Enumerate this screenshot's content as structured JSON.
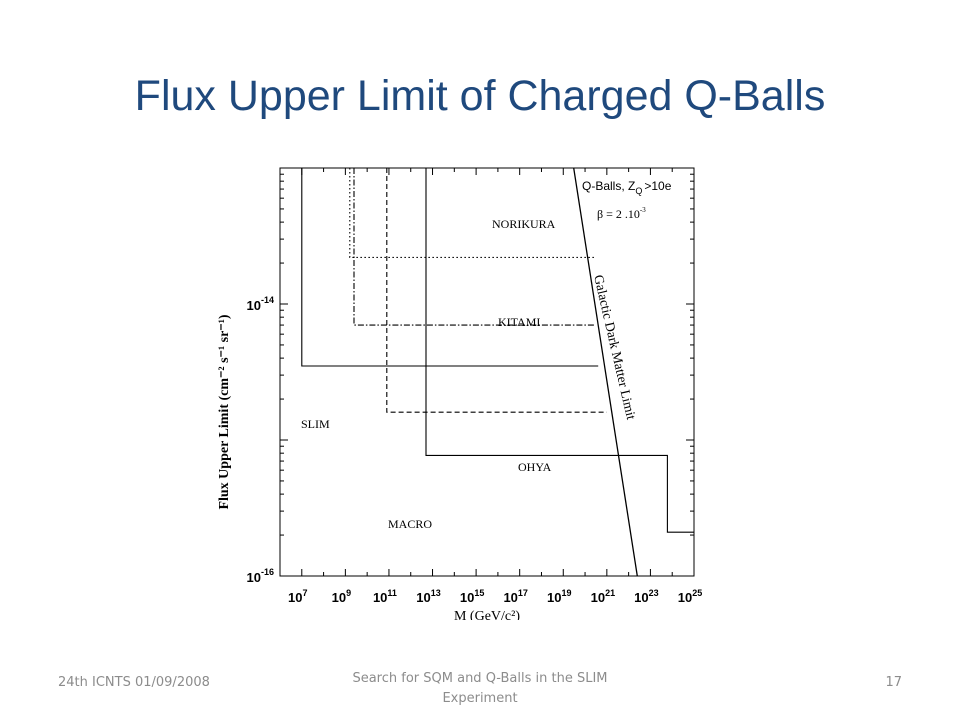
{
  "slide": {
    "title": "Flux Upper Limit of Charged Q-Balls",
    "footer_left": "24th ICNTS 01/09/2008",
    "footer_center": "Search for SQM and Q-Balls in the SLIM Experiment",
    "page_number": "17"
  },
  "chart_data": {
    "type": "line",
    "xscale": "log",
    "yscale": "log",
    "xlim": [
      1000000.0,
      1e+25
    ],
    "ylim": [
      1e-16,
      1e-13
    ],
    "xlabel": "M (GeV/c²)",
    "ylabel": "Flux Upper Limit (cm⁻² s⁻¹ sr⁻¹)",
    "x_ticks": [
      {
        "value": 10000000.0,
        "label_base": "10",
        "label_exp": "7"
      },
      {
        "value": 1000000000.0,
        "label_base": "10",
        "label_exp": "9"
      },
      {
        "value": 100000000000.0,
        "label_base": "10",
        "label_exp": "11"
      },
      {
        "value": 10000000000000.0,
        "label_base": "10",
        "label_exp": "13"
      },
      {
        "value": 1000000000000000.0,
        "label_base": "10",
        "label_exp": "15"
      },
      {
        "value": 1e+17,
        "label_base": "10",
        "label_exp": "17"
      },
      {
        "value": 1e+19,
        "label_base": "10",
        "label_exp": "19"
      },
      {
        "value": 1e+21,
        "label_base": "10",
        "label_exp": "21"
      },
      {
        "value": 1e+23,
        "label_base": "10",
        "label_exp": "23"
      },
      {
        "value": 1e+25,
        "label_base": "10",
        "label_exp": "25"
      }
    ],
    "y_ticks": [
      {
        "value": 1e-14,
        "label_base": "10",
        "label_exp": "-14"
      },
      {
        "value": 1e-16,
        "label_base": "10",
        "label_exp": "-16"
      }
    ],
    "series": [
      {
        "name": "SLIM",
        "style": "solid",
        "x": [
          10000000.0,
          10000000.0,
          4e+20
        ],
        "y": [
          1e-13,
          3.5e-15,
          3.5e-15
        ]
      },
      {
        "name": "NORIKURA",
        "style": "dotted",
        "x": [
          1600000000.0,
          1600000000.0,
          3e+20
        ],
        "y": [
          1e-13,
          2.2e-14,
          2.2e-14
        ]
      },
      {
        "name": "KITAMI",
        "style": "dashdot",
        "x": [
          2500000000.0,
          2500000000.0,
          3e+20
        ],
        "y": [
          1e-13,
          7e-15,
          7e-15
        ]
      },
      {
        "name": "OHYA",
        "style": "dashed",
        "x": [
          80000000000.0,
          80000000000.0,
          1e+21
        ],
        "y": [
          1e-13,
          1.6e-15,
          1.6e-15
        ]
      },
      {
        "name": "MACRO",
        "style": "solid",
        "x": [
          5000000000000.0,
          5000000000000.0,
          6e+23,
          6e+23,
          1e+25
        ],
        "y": [
          1e-13,
          7.7e-16,
          7.7e-16,
          2.1e-16,
          2.1e-16
        ]
      },
      {
        "name": "Galactic Dark Matter Limit",
        "style": "solid",
        "x": [
          3e+19,
          2.5e+22
        ],
        "y": [
          1e-13,
          1e-16
        ]
      }
    ],
    "annotations": {
      "qballs_label": "Q-Balls,",
      "z_label": "Z",
      "z_sub": "Q",
      "z_value": ">10e",
      "beta_label": "β = 2 .10",
      "beta_exp": "-3",
      "gdm_label": "Galactic Dark Matter Limit"
    }
  }
}
